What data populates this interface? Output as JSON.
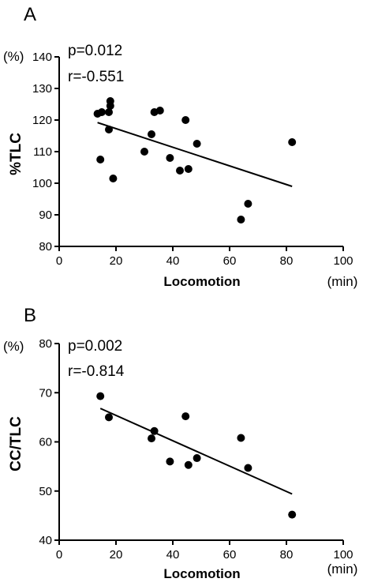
{
  "chart_data": [
    {
      "type": "scatter",
      "panel_label": "A",
      "ylabel": "%TLC",
      "y_unit": "(%)",
      "xlabel": "Locomotion",
      "x_unit": "(min)",
      "stats": [
        "p=0.012",
        "r=-0.551"
      ],
      "xlim": [
        0,
        100
      ],
      "ylim": [
        80,
        140
      ],
      "x_ticks": [
        0,
        20,
        40,
        60,
        80,
        100
      ],
      "y_ticks": [
        80,
        90,
        100,
        110,
        120,
        130,
        140
      ],
      "points": [
        {
          "x": 13.5,
          "y": 122
        },
        {
          "x": 14.5,
          "y": 107.5
        },
        {
          "x": 15,
          "y": 122.5
        },
        {
          "x": 17.5,
          "y": 117
        },
        {
          "x": 17.5,
          "y": 122.5
        },
        {
          "x": 18,
          "y": 124.5
        },
        {
          "x": 18,
          "y": 126
        },
        {
          "x": 19,
          "y": 101.5
        },
        {
          "x": 30,
          "y": 110
        },
        {
          "x": 32.5,
          "y": 115.5
        },
        {
          "x": 33.5,
          "y": 122.5
        },
        {
          "x": 35.5,
          "y": 123
        },
        {
          "x": 39,
          "y": 108
        },
        {
          "x": 42.5,
          "y": 104
        },
        {
          "x": 44.5,
          "y": 120
        },
        {
          "x": 45.5,
          "y": 104.5
        },
        {
          "x": 48.5,
          "y": 112.5
        },
        {
          "x": 64,
          "y": 88.5
        },
        {
          "x": 66.5,
          "y": 93.5
        },
        {
          "x": 82,
          "y": 113
        }
      ],
      "fit_line": {
        "x": [
          13.5,
          82
        ],
        "y": [
          119.2,
          99
        ]
      }
    },
    {
      "type": "scatter",
      "panel_label": "B",
      "ylabel": "CC/TLC",
      "y_unit": "(%)",
      "xlabel": "Locomotion",
      "x_unit": "(min)",
      "stats": [
        "p=0.002",
        "r=-0.814"
      ],
      "xlim": [
        0,
        100
      ],
      "ylim": [
        40,
        80
      ],
      "x_ticks": [
        0,
        20,
        40,
        60,
        80,
        100
      ],
      "y_ticks": [
        40,
        50,
        60,
        70,
        80
      ],
      "points": [
        {
          "x": 14.5,
          "y": 69.3
        },
        {
          "x": 17.5,
          "y": 65
        },
        {
          "x": 32.5,
          "y": 60.7
        },
        {
          "x": 33.5,
          "y": 62.2
        },
        {
          "x": 39,
          "y": 56
        },
        {
          "x": 44.5,
          "y": 65.2
        },
        {
          "x": 45.5,
          "y": 55.3
        },
        {
          "x": 48.5,
          "y": 56.7
        },
        {
          "x": 64,
          "y": 60.8
        },
        {
          "x": 66.5,
          "y": 54.7
        },
        {
          "x": 82,
          "y": 45.2
        }
      ],
      "fit_line": {
        "x": [
          14.5,
          82
        ],
        "y": [
          66.8,
          49.4
        ]
      }
    }
  ]
}
